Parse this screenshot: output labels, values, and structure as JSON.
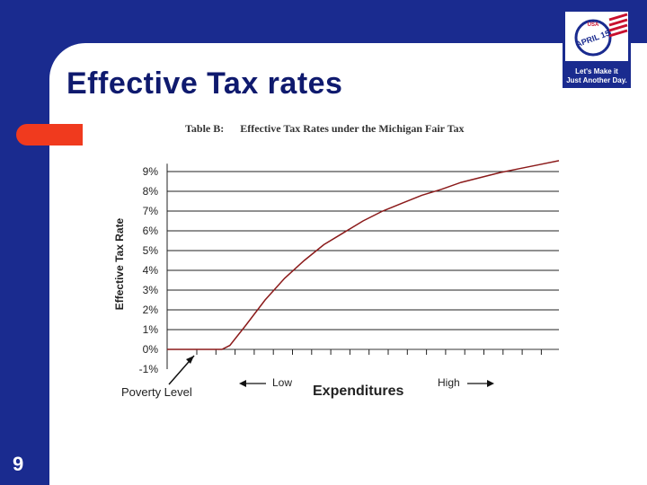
{
  "slide": {
    "title": "Effective Tax rates",
    "page_number": "9",
    "colors": {
      "background": "#1a2b8f",
      "accent": "#f03a1e",
      "title": "#0f1a6e"
    }
  },
  "logo": {
    "badge_text": "APRIL 15",
    "top_text": "USA",
    "tagline_1": "Let's Make it",
    "tagline_2": "Just Another Day."
  },
  "chart_data": {
    "type": "line",
    "title": "Table B:      Effective Tax Rates under the Michigan Fair Tax",
    "ylabel": "Effective Tax Rate",
    "xlabel": "Expenditures",
    "x_annotations": {
      "low": "Low",
      "high": "High",
      "poverty": "Poverty Level"
    },
    "ylim": [
      -1,
      9.5
    ],
    "y_ticks": [
      "9%",
      "8%",
      "7%",
      "6%",
      "5%",
      "4%",
      "3%",
      "2%",
      "1%",
      "0%",
      "-1%"
    ],
    "xlim": [
      0,
      100
    ],
    "grid": true,
    "series": [
      {
        "color": "#8b1a1a",
        "x": [
          0,
          14,
          16,
          20,
          25,
          30,
          35,
          40,
          45,
          50,
          55,
          60,
          65,
          70,
          75,
          80,
          85,
          90,
          95,
          100
        ],
        "y": [
          0,
          0,
          0.2,
          1.2,
          2.5,
          3.6,
          4.5,
          5.3,
          5.9,
          6.5,
          7.0,
          7.4,
          7.8,
          8.1,
          8.45,
          8.7,
          8.95,
          9.15,
          9.35,
          9.55
        ]
      }
    ]
  }
}
